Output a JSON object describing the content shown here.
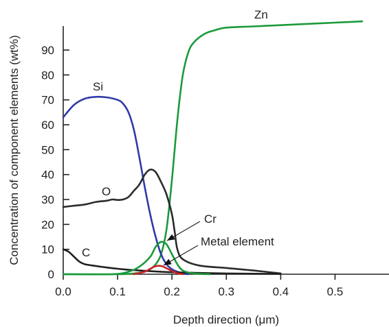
{
  "chart_data": {
    "type": "line",
    "title": "",
    "xlabel": "Depth direction (μm)",
    "ylabel": "Concentration of component elements (wt%)",
    "xlim": [
      0,
      0.6
    ],
    "ylim": [
      0,
      100
    ],
    "x_ticks": [
      0.0,
      0.1,
      0.2,
      0.3,
      0.4,
      0.5
    ],
    "x_tick_labels": [
      "0.0",
      "0.1",
      "0.2",
      "0.3",
      "0.4",
      "0.5"
    ],
    "y_ticks": [
      0,
      10,
      20,
      30,
      40,
      50,
      60,
      70,
      80,
      90
    ],
    "y_tick_labels": [
      "0",
      "10",
      "20",
      "30",
      "40",
      "50",
      "60",
      "70",
      "80",
      "90"
    ],
    "grid": false,
    "legend": "none",
    "series": [
      {
        "name": "Zn",
        "color": "#1a9a3a",
        "x": [
          0,
          0.1,
          0.13,
          0.15,
          0.16,
          0.17,
          0.18,
          0.19,
          0.2,
          0.21,
          0.22,
          0.23,
          0.24,
          0.26,
          0.28,
          0.3,
          0.35,
          0.4,
          0.45,
          0.5,
          0.55
        ],
        "y": [
          0,
          0,
          0.3,
          1,
          2,
          4,
          8,
          18,
          38,
          62,
          80,
          89,
          93,
          96.5,
          98,
          99,
          99.5,
          100,
          100.5,
          101,
          101.5
        ]
      },
      {
        "name": "Si",
        "color": "#2f3aa8",
        "x": [
          0,
          0.02,
          0.04,
          0.06,
          0.08,
          0.1,
          0.11,
          0.12,
          0.13,
          0.14,
          0.15,
          0.16,
          0.17,
          0.18,
          0.19,
          0.2,
          0.21,
          0.22,
          0.23
        ],
        "y": [
          63,
          68,
          70.5,
          71.2,
          71,
          70,
          68.5,
          65,
          58,
          47,
          35,
          24,
          15,
          8,
          4,
          2,
          1,
          0.3,
          0
        ]
      },
      {
        "name": "O",
        "color": "#2b2b2b",
        "x": [
          0,
          0.02,
          0.04,
          0.06,
          0.08,
          0.09,
          0.1,
          0.11,
          0.12,
          0.13,
          0.14,
          0.15,
          0.16,
          0.17,
          0.18,
          0.19,
          0.2,
          0.205,
          0.21,
          0.22,
          0.25,
          0.3,
          0.35,
          0.4
        ],
        "y": [
          27,
          27.5,
          28,
          29,
          29.5,
          30,
          29.8,
          30,
          31,
          33.5,
          36,
          40,
          42,
          41,
          37,
          32,
          24,
          17,
          10,
          6,
          3.5,
          2.5,
          1.5,
          0.3
        ]
      },
      {
        "name": "C",
        "color": "#1f1f1f",
        "x": [
          0,
          0.01,
          0.02,
          0.03,
          0.04,
          0.06,
          0.08,
          0.1,
          0.12,
          0.14,
          0.16,
          0.18,
          0.2,
          0.25,
          0.3,
          0.35,
          0.4
        ],
        "y": [
          10,
          9,
          7,
          5,
          4,
          3.3,
          2.7,
          2.2,
          1.8,
          1.5,
          1.2,
          1,
          0.8,
          0.5,
          0.3,
          0.2,
          0.1
        ]
      },
      {
        "name": "Cr",
        "color": "#1a9a3a",
        "x": [
          0,
          0.09,
          0.12,
          0.14,
          0.16,
          0.17,
          0.18,
          0.19,
          0.2,
          0.21,
          0.22,
          0.24,
          0.27
        ],
        "y": [
          0,
          0,
          1,
          3,
          7,
          11,
          13,
          12,
          8,
          4,
          1.5,
          0.3,
          0
        ]
      },
      {
        "name": "Metal element",
        "color": "#cc2222",
        "x": [
          0.13,
          0.15,
          0.16,
          0.17,
          0.18,
          0.19,
          0.2,
          0.21,
          0.22
        ],
        "y": [
          0,
          1,
          2.2,
          3.2,
          3.3,
          2.4,
          1.3,
          0.4,
          0
        ]
      }
    ],
    "annotations": [
      {
        "text": "Zn"
      },
      {
        "text": "Si"
      },
      {
        "text": "O"
      },
      {
        "text": "C"
      },
      {
        "text": "Cr"
      },
      {
        "text": "Metal element"
      }
    ]
  }
}
